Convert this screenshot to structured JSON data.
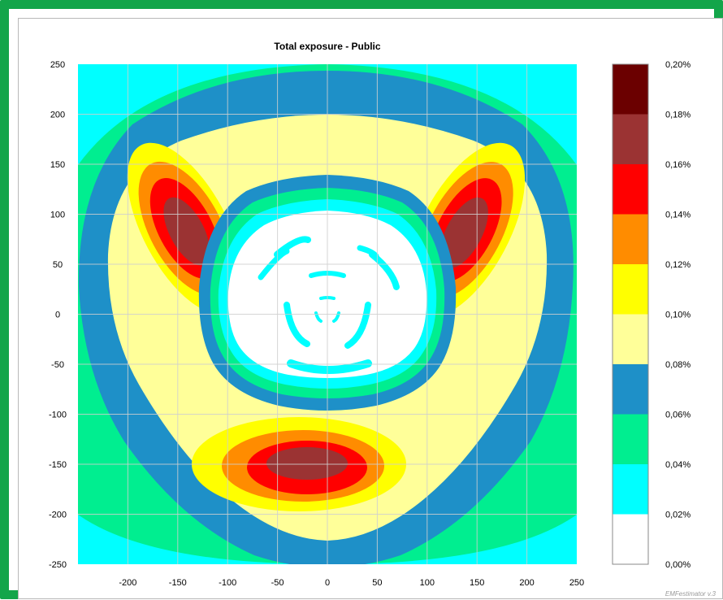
{
  "chart_data": {
    "type": "heatmap",
    "title": "Total exposure - Public",
    "x_ticks": [
      "-200",
      "-150",
      "-100",
      "-50",
      "0",
      "50",
      "100",
      "150",
      "200",
      "250"
    ],
    "y_ticks": [
      "250",
      "200",
      "150",
      "100",
      "50",
      "0",
      "-50",
      "-100",
      "-150",
      "-200",
      "-250"
    ],
    "xlim": [
      -250,
      250
    ],
    "ylim": [
      -250,
      250
    ],
    "grid": true,
    "colorbar": {
      "position": "right",
      "ticks": [
        "0,20%",
        "0,18%",
        "0,16%",
        "0,14%",
        "0,12%",
        "0,10%",
        "0,08%",
        "0,06%",
        "0,04%",
        "0,02%",
        "0,00%"
      ],
      "levels": [
        {
          "range": [
            0.18,
            0.2
          ],
          "color": "#6b0000"
        },
        {
          "range": [
            0.16,
            0.18
          ],
          "color": "#9b3333"
        },
        {
          "range": [
            0.14,
            0.16
          ],
          "color": "#ff0000"
        },
        {
          "range": [
            0.12,
            0.14
          ],
          "color": "#ff8c00"
        },
        {
          "range": [
            0.1,
            0.12
          ],
          "color": "#ffff00"
        },
        {
          "range": [
            0.08,
            0.1
          ],
          "color": "#ffff99"
        },
        {
          "range": [
            0.06,
            0.08
          ],
          "color": "#1e90c8"
        },
        {
          "range": [
            0.04,
            0.06
          ],
          "color": "#00ee90"
        },
        {
          "range": [
            0.02,
            0.04
          ],
          "color": "#00ffff"
        },
        {
          "range": [
            0.0,
            0.02
          ],
          "color": "#ffffff"
        }
      ]
    }
  },
  "watermark": "EMFestimator v.3"
}
